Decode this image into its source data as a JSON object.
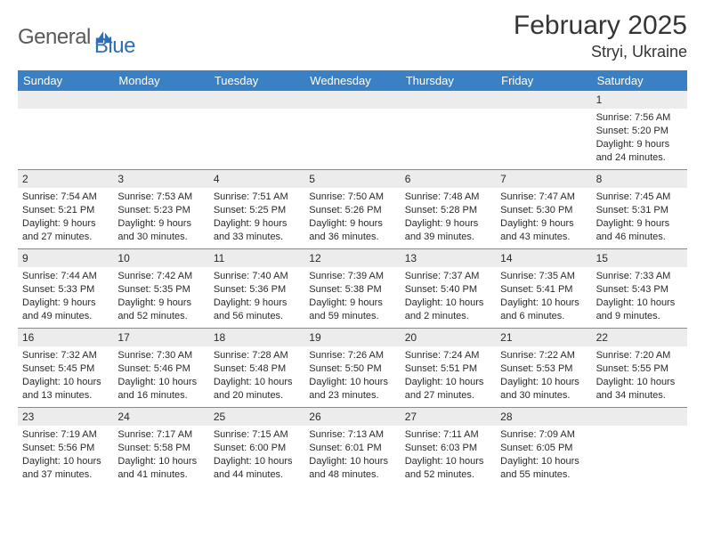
{
  "logo": {
    "general": "General",
    "blue": "Blue"
  },
  "title": "February 2025",
  "location": "Stryi, Ukraine",
  "colors": {
    "header_bg": "#3a80c5",
    "daynum_bg": "#ececec"
  },
  "days_of_week": [
    "Sunday",
    "Monday",
    "Tuesday",
    "Wednesday",
    "Thursday",
    "Friday",
    "Saturday"
  ],
  "weeks": [
    [
      {
        "n": "",
        "e": true
      },
      {
        "n": "",
        "e": true
      },
      {
        "n": "",
        "e": true
      },
      {
        "n": "",
        "e": true
      },
      {
        "n": "",
        "e": true
      },
      {
        "n": "",
        "e": true
      },
      {
        "n": "1",
        "sr": "Sunrise: 7:56 AM",
        "ss": "Sunset: 5:20 PM",
        "d1": "Daylight: 9 hours",
        "d2": "and 24 minutes."
      }
    ],
    [
      {
        "n": "2",
        "sr": "Sunrise: 7:54 AM",
        "ss": "Sunset: 5:21 PM",
        "d1": "Daylight: 9 hours",
        "d2": "and 27 minutes."
      },
      {
        "n": "3",
        "sr": "Sunrise: 7:53 AM",
        "ss": "Sunset: 5:23 PM",
        "d1": "Daylight: 9 hours",
        "d2": "and 30 minutes."
      },
      {
        "n": "4",
        "sr": "Sunrise: 7:51 AM",
        "ss": "Sunset: 5:25 PM",
        "d1": "Daylight: 9 hours",
        "d2": "and 33 minutes."
      },
      {
        "n": "5",
        "sr": "Sunrise: 7:50 AM",
        "ss": "Sunset: 5:26 PM",
        "d1": "Daylight: 9 hours",
        "d2": "and 36 minutes."
      },
      {
        "n": "6",
        "sr": "Sunrise: 7:48 AM",
        "ss": "Sunset: 5:28 PM",
        "d1": "Daylight: 9 hours",
        "d2": "and 39 minutes."
      },
      {
        "n": "7",
        "sr": "Sunrise: 7:47 AM",
        "ss": "Sunset: 5:30 PM",
        "d1": "Daylight: 9 hours",
        "d2": "and 43 minutes."
      },
      {
        "n": "8",
        "sr": "Sunrise: 7:45 AM",
        "ss": "Sunset: 5:31 PM",
        "d1": "Daylight: 9 hours",
        "d2": "and 46 minutes."
      }
    ],
    [
      {
        "n": "9",
        "sr": "Sunrise: 7:44 AM",
        "ss": "Sunset: 5:33 PM",
        "d1": "Daylight: 9 hours",
        "d2": "and 49 minutes."
      },
      {
        "n": "10",
        "sr": "Sunrise: 7:42 AM",
        "ss": "Sunset: 5:35 PM",
        "d1": "Daylight: 9 hours",
        "d2": "and 52 minutes."
      },
      {
        "n": "11",
        "sr": "Sunrise: 7:40 AM",
        "ss": "Sunset: 5:36 PM",
        "d1": "Daylight: 9 hours",
        "d2": "and 56 minutes."
      },
      {
        "n": "12",
        "sr": "Sunrise: 7:39 AM",
        "ss": "Sunset: 5:38 PM",
        "d1": "Daylight: 9 hours",
        "d2": "and 59 minutes."
      },
      {
        "n": "13",
        "sr": "Sunrise: 7:37 AM",
        "ss": "Sunset: 5:40 PM",
        "d1": "Daylight: 10 hours",
        "d2": "and 2 minutes."
      },
      {
        "n": "14",
        "sr": "Sunrise: 7:35 AM",
        "ss": "Sunset: 5:41 PM",
        "d1": "Daylight: 10 hours",
        "d2": "and 6 minutes."
      },
      {
        "n": "15",
        "sr": "Sunrise: 7:33 AM",
        "ss": "Sunset: 5:43 PM",
        "d1": "Daylight: 10 hours",
        "d2": "and 9 minutes."
      }
    ],
    [
      {
        "n": "16",
        "sr": "Sunrise: 7:32 AM",
        "ss": "Sunset: 5:45 PM",
        "d1": "Daylight: 10 hours",
        "d2": "and 13 minutes."
      },
      {
        "n": "17",
        "sr": "Sunrise: 7:30 AM",
        "ss": "Sunset: 5:46 PM",
        "d1": "Daylight: 10 hours",
        "d2": "and 16 minutes."
      },
      {
        "n": "18",
        "sr": "Sunrise: 7:28 AM",
        "ss": "Sunset: 5:48 PM",
        "d1": "Daylight: 10 hours",
        "d2": "and 20 minutes."
      },
      {
        "n": "19",
        "sr": "Sunrise: 7:26 AM",
        "ss": "Sunset: 5:50 PM",
        "d1": "Daylight: 10 hours",
        "d2": "and 23 minutes."
      },
      {
        "n": "20",
        "sr": "Sunrise: 7:24 AM",
        "ss": "Sunset: 5:51 PM",
        "d1": "Daylight: 10 hours",
        "d2": "and 27 minutes."
      },
      {
        "n": "21",
        "sr": "Sunrise: 7:22 AM",
        "ss": "Sunset: 5:53 PM",
        "d1": "Daylight: 10 hours",
        "d2": "and 30 minutes."
      },
      {
        "n": "22",
        "sr": "Sunrise: 7:20 AM",
        "ss": "Sunset: 5:55 PM",
        "d1": "Daylight: 10 hours",
        "d2": "and 34 minutes."
      }
    ],
    [
      {
        "n": "23",
        "sr": "Sunrise: 7:19 AM",
        "ss": "Sunset: 5:56 PM",
        "d1": "Daylight: 10 hours",
        "d2": "and 37 minutes."
      },
      {
        "n": "24",
        "sr": "Sunrise: 7:17 AM",
        "ss": "Sunset: 5:58 PM",
        "d1": "Daylight: 10 hours",
        "d2": "and 41 minutes."
      },
      {
        "n": "25",
        "sr": "Sunrise: 7:15 AM",
        "ss": "Sunset: 6:00 PM",
        "d1": "Daylight: 10 hours",
        "d2": "and 44 minutes."
      },
      {
        "n": "26",
        "sr": "Sunrise: 7:13 AM",
        "ss": "Sunset: 6:01 PM",
        "d1": "Daylight: 10 hours",
        "d2": "and 48 minutes."
      },
      {
        "n": "27",
        "sr": "Sunrise: 7:11 AM",
        "ss": "Sunset: 6:03 PM",
        "d1": "Daylight: 10 hours",
        "d2": "and 52 minutes."
      },
      {
        "n": "28",
        "sr": "Sunrise: 7:09 AM",
        "ss": "Sunset: 6:05 PM",
        "d1": "Daylight: 10 hours",
        "d2": "and 55 minutes."
      },
      {
        "n": "",
        "e": true
      }
    ]
  ]
}
